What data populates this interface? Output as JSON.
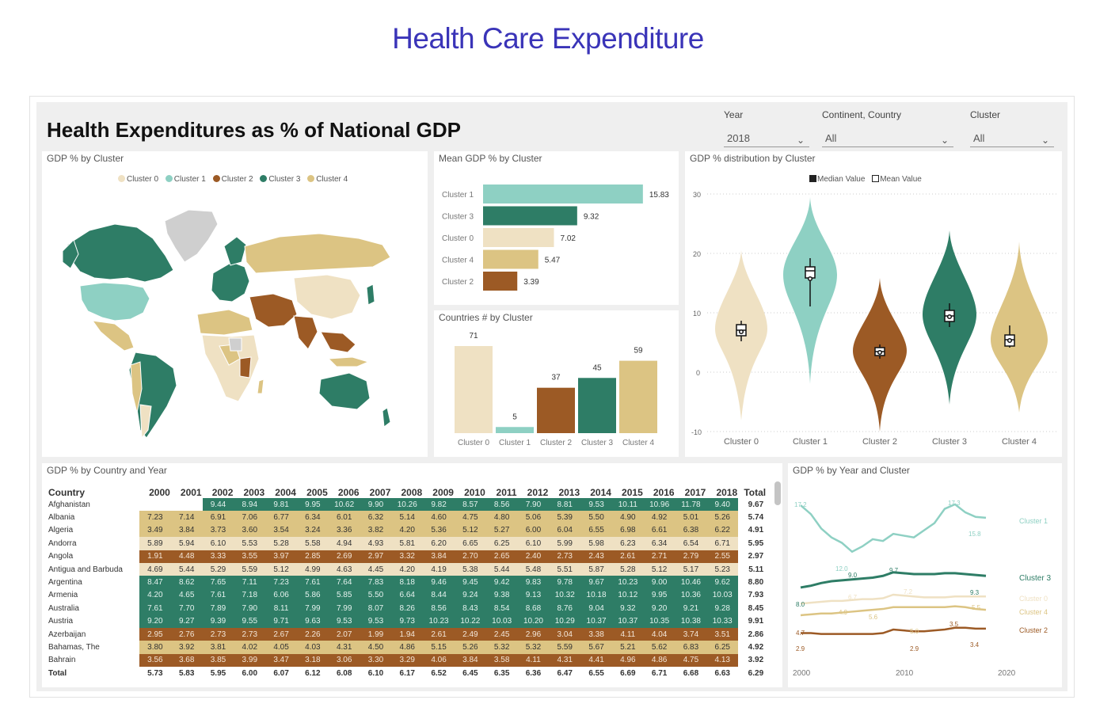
{
  "page_title": "Health Care Expenditure",
  "report_title": "Health Expenditures as % of National GDP",
  "filters": {
    "year": {
      "label": "Year",
      "value": "2018"
    },
    "country": {
      "label": "Continent, Country",
      "value": "All"
    },
    "cluster": {
      "label": "Cluster",
      "value": "All"
    }
  },
  "colors": {
    "cluster_0": "#efe1c3",
    "cluster_1": "#8ed0c3",
    "cluster_2": "#9c5a25",
    "cluster_3": "#2e7d66",
    "cluster_4": "#dcc483",
    "no_data": "#cfcfcf"
  },
  "map": {
    "title": "GDP % by Cluster",
    "legend": [
      "Cluster 0",
      "Cluster 1",
      "Cluster 2",
      "Cluster 3",
      "Cluster 4"
    ]
  },
  "mean_gdp": {
    "title": "Mean GDP % by Cluster",
    "items": [
      {
        "label": "Cluster 1",
        "value": 15.83,
        "text": "15.83",
        "color": "#8ed0c3"
      },
      {
        "label": "Cluster 3",
        "value": 9.32,
        "text": "9.32",
        "color": "#2e7d66"
      },
      {
        "label": "Cluster 0",
        "value": 7.02,
        "text": "7.02",
        "color": "#efe1c3"
      },
      {
        "label": "Cluster 4",
        "value": 5.47,
        "text": "5.47",
        "color": "#dcc483"
      },
      {
        "label": "Cluster 2",
        "value": 3.39,
        "text": "3.39",
        "color": "#9c5a25"
      }
    ]
  },
  "countries_count": {
    "title": "Countries # by Cluster",
    "items": [
      {
        "label": "Cluster 0",
        "value": 71,
        "color": "#efe1c3"
      },
      {
        "label": "Cluster 1",
        "value": 5,
        "color": "#8ed0c3"
      },
      {
        "label": "Cluster 2",
        "value": 37,
        "color": "#9c5a25"
      },
      {
        "label": "Cluster 3",
        "value": 45,
        "color": "#2e7d66"
      },
      {
        "label": "Cluster 4",
        "value": 59,
        "color": "#dcc483"
      }
    ]
  },
  "violin": {
    "title": "GDP % distribution by Cluster",
    "legend_median": "Median Value",
    "legend_mean": "Mean Value",
    "y_ticks": [
      "30",
      "20",
      "10",
      "0",
      "-10"
    ],
    "categories": [
      "Cluster 0",
      "Cluster 1",
      "Cluster 2",
      "Cluster 3",
      "Cluster 4"
    ]
  },
  "matrix": {
    "title": "GDP % by Country and Year",
    "header_country": "Country",
    "years": [
      "2000",
      "2001",
      "2002",
      "2003",
      "2004",
      "2005",
      "2006",
      "2007",
      "2008",
      "2009",
      "2010",
      "2011",
      "2012",
      "2013",
      "2014",
      "2015",
      "2016",
      "2017",
      "2018"
    ],
    "header_total": "Total",
    "rows": [
      {
        "country": "Afghanistan",
        "cluster": 3,
        "values": [
          "",
          "",
          "9.44",
          "8.94",
          "9.81",
          "9.95",
          "10.62",
          "9.90",
          "10.26",
          "9.82",
          "8.57",
          "8.56",
          "7.90",
          "8.81",
          "9.53",
          "10.11",
          "10.96",
          "11.78",
          "9.40"
        ],
        "total": "9.67"
      },
      {
        "country": "Albania",
        "cluster": 4,
        "values": [
          "7.23",
          "7.14",
          "6.91",
          "7.06",
          "6.77",
          "6.34",
          "6.01",
          "6.32",
          "5.14",
          "4.60",
          "4.75",
          "4.80",
          "5.06",
          "5.39",
          "5.50",
          "4.90",
          "4.92",
          "5.01",
          "5.26"
        ],
        "total": "5.74"
      },
      {
        "country": "Algeria",
        "cluster": 4,
        "values": [
          "3.49",
          "3.84",
          "3.73",
          "3.60",
          "3.54",
          "3.24",
          "3.36",
          "3.82",
          "4.20",
          "5.36",
          "5.12",
          "5.27",
          "6.00",
          "6.04",
          "6.55",
          "6.98",
          "6.61",
          "6.38",
          "6.22"
        ],
        "total": "4.91"
      },
      {
        "country": "Andorra",
        "cluster": 0,
        "values": [
          "5.89",
          "5.94",
          "6.10",
          "5.53",
          "5.28",
          "5.58",
          "4.94",
          "4.93",
          "5.81",
          "6.20",
          "6.65",
          "6.25",
          "6.10",
          "5.99",
          "5.98",
          "6.23",
          "6.34",
          "6.54",
          "6.71"
        ],
        "total": "5.95"
      },
      {
        "country": "Angola",
        "cluster": 2,
        "values": [
          "1.91",
          "4.48",
          "3.33",
          "3.55",
          "3.97",
          "2.85",
          "2.69",
          "2.97",
          "3.32",
          "3.84",
          "2.70",
          "2.65",
          "2.40",
          "2.73",
          "2.43",
          "2.61",
          "2.71",
          "2.79",
          "2.55"
        ],
        "total": "2.97"
      },
      {
        "country": "Antigua and Barbuda",
        "cluster": 0,
        "values": [
          "4.69",
          "5.44",
          "5.29",
          "5.59",
          "5.12",
          "4.99",
          "4.63",
          "4.45",
          "4.20",
          "4.19",
          "5.38",
          "5.44",
          "5.48",
          "5.51",
          "5.87",
          "5.28",
          "5.12",
          "5.17",
          "5.23"
        ],
        "total": "5.11"
      },
      {
        "country": "Argentina",
        "cluster": 3,
        "values": [
          "8.47",
          "8.62",
          "7.65",
          "7.11",
          "7.23",
          "7.61",
          "7.64",
          "7.83",
          "8.18",
          "9.46",
          "9.45",
          "9.42",
          "9.83",
          "9.78",
          "9.67",
          "10.23",
          "9.00",
          "10.46",
          "9.62"
        ],
        "total": "8.80"
      },
      {
        "country": "Armenia",
        "cluster": 3,
        "values": [
          "4.20",
          "4.65",
          "7.61",
          "7.18",
          "6.06",
          "5.86",
          "5.85",
          "5.50",
          "6.64",
          "8.44",
          "9.24",
          "9.38",
          "9.13",
          "10.32",
          "10.18",
          "10.12",
          "9.95",
          "10.36",
          "10.03"
        ],
        "total": "7.93"
      },
      {
        "country": "Australia",
        "cluster": 3,
        "values": [
          "7.61",
          "7.70",
          "7.89",
          "7.90",
          "8.11",
          "7.99",
          "7.99",
          "8.07",
          "8.26",
          "8.56",
          "8.43",
          "8.54",
          "8.68",
          "8.76",
          "9.04",
          "9.32",
          "9.20",
          "9.21",
          "9.28"
        ],
        "total": "8.45"
      },
      {
        "country": "Austria",
        "cluster": 3,
        "values": [
          "9.20",
          "9.27",
          "9.39",
          "9.55",
          "9.71",
          "9.63",
          "9.53",
          "9.53",
          "9.73",
          "10.23",
          "10.22",
          "10.03",
          "10.20",
          "10.29",
          "10.37",
          "10.37",
          "10.35",
          "10.38",
          "10.33"
        ],
        "total": "9.91"
      },
      {
        "country": "Azerbaijan",
        "cluster": 2,
        "values": [
          "2.95",
          "2.76",
          "2.73",
          "2.73",
          "2.67",
          "2.26",
          "2.07",
          "1.99",
          "1.94",
          "2.61",
          "2.49",
          "2.45",
          "2.96",
          "3.04",
          "3.38",
          "4.11",
          "4.04",
          "3.74",
          "3.51"
        ],
        "total": "2.86"
      },
      {
        "country": "Bahamas, The",
        "cluster": 4,
        "values": [
          "3.80",
          "3.92",
          "3.81",
          "4.02",
          "4.05",
          "4.03",
          "4.31",
          "4.50",
          "4.86",
          "5.15",
          "5.26",
          "5.32",
          "5.32",
          "5.59",
          "5.67",
          "5.21",
          "5.62",
          "6.83",
          "6.25"
        ],
        "total": "4.92"
      },
      {
        "country": "Bahrain",
        "cluster": 2,
        "values": [
          "3.56",
          "3.68",
          "3.85",
          "3.99",
          "3.47",
          "3.18",
          "3.06",
          "3.30",
          "3.29",
          "4.06",
          "3.84",
          "3.58",
          "4.11",
          "4.31",
          "4.41",
          "4.96",
          "4.86",
          "4.75",
          "4.13"
        ],
        "total": "3.92"
      }
    ],
    "total_row": {
      "label": "Total",
      "values": [
        "5.73",
        "5.83",
        "5.95",
        "6.00",
        "6.07",
        "6.12",
        "6.08",
        "6.10",
        "6.17",
        "6.52",
        "6.45",
        "6.35",
        "6.36",
        "6.47",
        "6.55",
        "6.69",
        "6.71",
        "6.68",
        "6.63"
      ],
      "total": "6.29"
    }
  },
  "line_chart": {
    "title": "GDP % by Year and Cluster",
    "x_ticks": [
      "2000",
      "2010",
      "2020"
    ],
    "series_labels": [
      "Cluster 1",
      "Cluster 3",
      "Cluster 0",
      "Cluster 4",
      "Cluster 2"
    ],
    "annotations": [
      "17.2",
      "17.3",
      "15.8",
      "12.0",
      "9.0",
      "9.7",
      "9.3",
      "8.0",
      "6.7",
      "7.2",
      "5.5",
      "4.9",
      "5.6",
      "3.5",
      "4.7",
      "5.0",
      "3.4",
      "2.9",
      "2.9"
    ]
  },
  "chart_data": [
    {
      "type": "bar",
      "title": "Mean GDP % by Cluster",
      "categories": [
        "Cluster 1",
        "Cluster 3",
        "Cluster 0",
        "Cluster 4",
        "Cluster 2"
      ],
      "values": [
        15.83,
        9.32,
        7.02,
        5.47,
        3.39
      ]
    },
    {
      "type": "bar",
      "title": "Countries # by Cluster",
      "categories": [
        "Cluster 0",
        "Cluster 1",
        "Cluster 2",
        "Cluster 3",
        "Cluster 4"
      ],
      "values": [
        71,
        5,
        37,
        45,
        59
      ]
    },
    {
      "type": "line",
      "title": "GDP % by Year and Cluster",
      "x": [
        2000,
        2001,
        2002,
        2003,
        2004,
        2005,
        2006,
        2007,
        2008,
        2009,
        2010,
        2011,
        2012,
        2013,
        2014,
        2015,
        2016,
        2017,
        2018
      ],
      "series": [
        {
          "name": "Cluster 1",
          "values": [
            17.2,
            16.2,
            14.6,
            13.6,
            13.0,
            12.0,
            12.6,
            13.4,
            13.2,
            14.0,
            13.8,
            13.6,
            14.4,
            15.2,
            16.8,
            17.3,
            16.4,
            15.9,
            15.8
          ]
        },
        {
          "name": "Cluster 3",
          "values": [
            8.0,
            8.2,
            8.5,
            8.7,
            8.8,
            8.9,
            9.0,
            9.1,
            9.3,
            9.7,
            9.6,
            9.5,
            9.5,
            9.5,
            9.6,
            9.6,
            9.5,
            9.4,
            9.3
          ]
        },
        {
          "name": "Cluster 0",
          "values": [
            6.2,
            6.3,
            6.4,
            6.5,
            6.5,
            6.6,
            6.7,
            6.7,
            6.8,
            7.2,
            7.1,
            7.0,
            6.9,
            6.9,
            6.9,
            7.0,
            7.0,
            7.0,
            7.0
          ]
        },
        {
          "name": "Cluster 4",
          "values": [
            4.9,
            5.0,
            5.1,
            5.1,
            5.2,
            5.3,
            5.4,
            5.5,
            5.6,
            5.8,
            5.8,
            5.8,
            5.8,
            5.8,
            5.8,
            5.9,
            5.8,
            5.6,
            5.5
          ]
        },
        {
          "name": "Cluster 2",
          "values": [
            2.9,
            2.9,
            2.8,
            2.8,
            2.8,
            2.8,
            2.8,
            2.8,
            2.9,
            3.3,
            3.2,
            3.1,
            3.1,
            3.2,
            3.3,
            3.5,
            3.5,
            3.4,
            3.4
          ]
        }
      ]
    }
  ]
}
